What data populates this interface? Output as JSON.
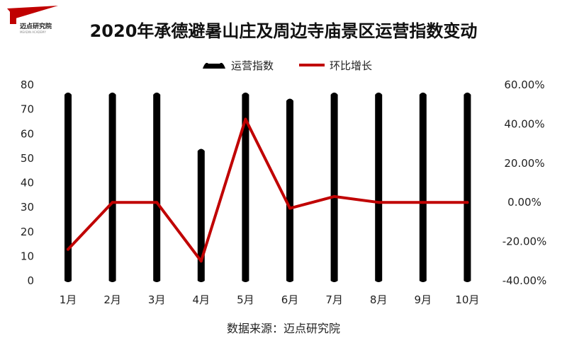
{
  "logo": {
    "name": "迈点研究院",
    "sub": "MEADIN ACADEMY"
  },
  "source": "数据来源：迈点研究院",
  "colors": {
    "bar": "#000000",
    "line": "#c00000"
  },
  "chart_data": {
    "type": "bar",
    "title": "2020年承德避暑山庄及周边寺庙景区运营指数变动",
    "categories": [
      "1月",
      "2月",
      "3月",
      "4月",
      "5月",
      "6月",
      "7月",
      "8月",
      "9月",
      "10月"
    ],
    "series": [
      {
        "name": "运营指数",
        "type": "bar",
        "axis": "left",
        "values": [
          76,
          76,
          76,
          53,
          76,
          73.5,
          76,
          76,
          76,
          76
        ]
      },
      {
        "name": "环比增长",
        "type": "line",
        "axis": "right",
        "values": [
          -24,
          0,
          0,
          -30,
          42.5,
          -3,
          3,
          0,
          0,
          0
        ]
      }
    ],
    "y_left": {
      "min": 0,
      "max": 80,
      "ticks": [
        0,
        10,
        20,
        30,
        40,
        50,
        60,
        70,
        80
      ]
    },
    "y_right": {
      "min": -40,
      "max": 60,
      "ticks": [
        -40,
        -20,
        0,
        20,
        40,
        60
      ],
      "tick_labels": [
        "-40.00%",
        "-20.00%",
        "0.00%",
        "20.00%",
        "40.00%",
        "60.00%"
      ]
    },
    "legend": "top-center",
    "grid": false
  }
}
